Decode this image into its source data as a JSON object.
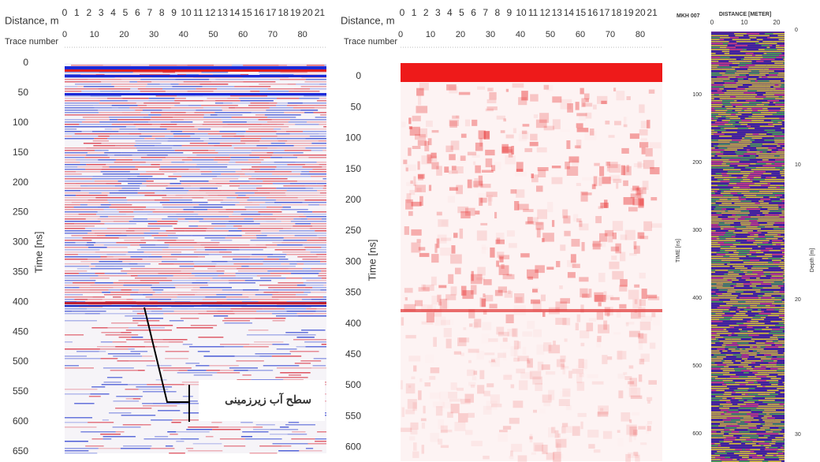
{
  "panels": [
    {
      "distance_label": "Distance, m",
      "distance_ticks": [
        0,
        1,
        2,
        3,
        4,
        5,
        6,
        7,
        8,
        9,
        10,
        11,
        12,
        13,
        14,
        15,
        16,
        17,
        18,
        19,
        20,
        21
      ],
      "trace_label": "Trace number",
      "trace_ticks": [
        0,
        10,
        20,
        30,
        40,
        50,
        60,
        70,
        80
      ],
      "time_label": "Time [ns]",
      "time_ticks": [
        0,
        50,
        100,
        150,
        200,
        250,
        300,
        350,
        400,
        450,
        500,
        550,
        600,
        650
      ],
      "annotation": "سطح آب زیرزمینی"
    },
    {
      "distance_label": "Distance, m",
      "distance_ticks": [
        0,
        1,
        2,
        3,
        4,
        5,
        6,
        7,
        8,
        9,
        10,
        11,
        12,
        13,
        14,
        15,
        16,
        17,
        18,
        19,
        20,
        21
      ],
      "trace_label": "Trace number",
      "trace_ticks": [
        0,
        10,
        20,
        30,
        40,
        50,
        60,
        70,
        80
      ],
      "time_label": "Time [ns]",
      "time_ticks": [
        0,
        50,
        100,
        150,
        200,
        250,
        300,
        350,
        400,
        450,
        500,
        550,
        600
      ]
    },
    {
      "header": "MKH 007",
      "distance_label": "DISTANCE [METER]",
      "distance_ticks": [
        0,
        10,
        20
      ],
      "time_label": "TIME [ns]",
      "time_ticks": [
        100,
        200,
        300,
        400,
        500,
        600
      ],
      "depth_label": "Depth [m]",
      "depth_ticks": [
        0,
        10,
        20,
        30
      ]
    }
  ]
}
